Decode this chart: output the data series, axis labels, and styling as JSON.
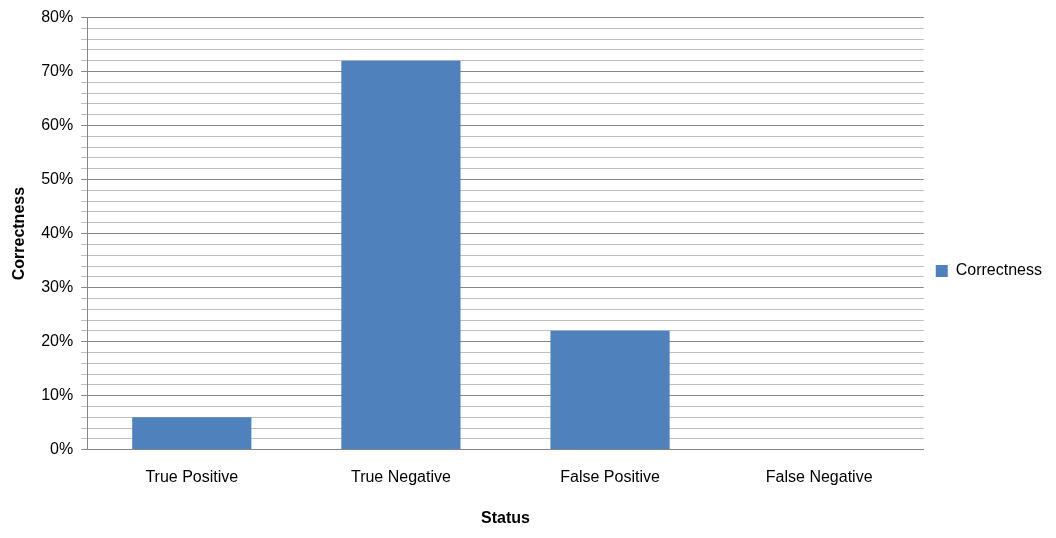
{
  "chart_data": {
    "type": "bar",
    "xlabel": "Status",
    "ylabel": "Correctness",
    "categories": [
      "True Positive",
      "True Negative",
      "False Positive",
      "False Negative"
    ],
    "series": [
      {
        "name": "Correctness",
        "color": "#4f81bd",
        "values": [
          6,
          72,
          22,
          0
        ]
      }
    ],
    "ylim": [
      0,
      80
    ],
    "yticks": [
      {
        "value": 0,
        "label": "0%"
      },
      {
        "value": 2,
        "label": null
      },
      {
        "value": 4,
        "label": null
      },
      {
        "value": 6,
        "label": null
      },
      {
        "value": 8,
        "label": null
      },
      {
        "value": 10,
        "label": "10%"
      },
      {
        "value": 12,
        "label": null
      },
      {
        "value": 14,
        "label": null
      },
      {
        "value": 16,
        "label": null
      },
      {
        "value": 18,
        "label": null
      },
      {
        "value": 20,
        "label": "20%"
      },
      {
        "value": 22,
        "label": null
      },
      {
        "value": 24,
        "label": null
      },
      {
        "value": 26,
        "label": null
      },
      {
        "value": 28,
        "label": null
      },
      {
        "value": 30,
        "label": "30%"
      },
      {
        "value": 32,
        "label": null
      },
      {
        "value": 34,
        "label": null
      },
      {
        "value": 36,
        "label": null
      },
      {
        "value": 38,
        "label": null
      },
      {
        "value": 40,
        "label": "40%"
      },
      {
        "value": 42,
        "label": null
      },
      {
        "value": 44,
        "label": null
      },
      {
        "value": 46,
        "label": null
      },
      {
        "value": 48,
        "label": null
      },
      {
        "value": 50,
        "label": "50%"
      },
      {
        "value": 52,
        "label": null
      },
      {
        "value": 54,
        "label": null
      },
      {
        "value": 56,
        "label": null
      },
      {
        "value": 58,
        "label": null
      },
      {
        "value": 60,
        "label": "60%"
      },
      {
        "value": 62,
        "label": null
      },
      {
        "value": 64,
        "label": null
      },
      {
        "value": 66,
        "label": null
      },
      {
        "value": 68,
        "label": null
      },
      {
        "value": 70,
        "label": "70%"
      },
      {
        "value": 72,
        "label": null
      },
      {
        "value": 74,
        "label": null
      },
      {
        "value": 76,
        "label": null
      },
      {
        "value": 78,
        "label": null
      },
      {
        "value": 80,
        "label": "80%"
      }
    ],
    "grid": "y",
    "legend": "right"
  }
}
